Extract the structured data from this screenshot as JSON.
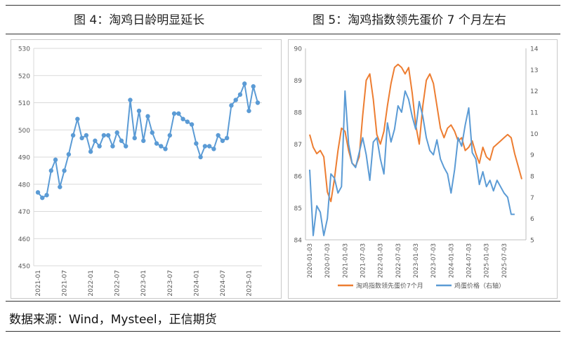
{
  "page": {
    "left_title": "图 4：淘鸡日龄明显延长",
    "right_title": "图 5：淘鸡指数领先蛋价 7 个月左右",
    "source": "数据来源：Wind，Mysteel，正信期货"
  },
  "chart_data": [
    {
      "type": "line",
      "title": "",
      "ylim": [
        450,
        530
      ],
      "yticks": [
        450,
        460,
        470,
        480,
        490,
        500,
        510,
        520,
        530
      ],
      "grid": true,
      "xtick_labels": [
        "2021-01",
        "2021-07",
        "2022-01",
        "2022-07",
        "2023-01",
        "2023-07",
        "2024-01",
        "2024-07",
        "2025-01"
      ],
      "series": [
        {
          "color": "#5b9bd5",
          "values": [
            477,
            475,
            476,
            485,
            489,
            479,
            485,
            491,
            498,
            504,
            497,
            498,
            492,
            496,
            494,
            498,
            498,
            494,
            499,
            496,
            494,
            511,
            497,
            507,
            496,
            505,
            499,
            495,
            494,
            493,
            498,
            506,
            506,
            504,
            503,
            502,
            495,
            490,
            494,
            494,
            493,
            498,
            496,
            497,
            509,
            511,
            513,
            517,
            507,
            516,
            510
          ]
        }
      ]
    },
    {
      "type": "line",
      "title": "",
      "ylim_left": [
        84,
        90
      ],
      "ylim_right": [
        5,
        14
      ],
      "yticks_left": [
        84,
        85,
        86,
        87,
        88,
        89,
        90
      ],
      "yticks_right": [
        5,
        6,
        7,
        8,
        9,
        10,
        11,
        12,
        13,
        14
      ],
      "grid": false,
      "legend_position": "bottom",
      "xtick_labels": [
        "2020-01-03",
        "2020-07-03",
        "2021-01-03",
        "2021-07-03",
        "2022-01-03",
        "2022-07-03",
        "2023-01-03",
        "2023-07-03",
        "2024-01-03",
        "2024-07-03",
        "2025-01-03",
        "2025-07-03"
      ],
      "series": [
        {
          "name": "淘鸡指数领先蛋价7个月",
          "color": "#ed7d31",
          "axis": "left",
          "x": [
            0.0,
            0.2,
            0.4,
            0.6,
            0.8,
            1.0,
            1.2,
            1.4,
            1.6,
            1.8,
            2.0,
            2.2,
            2.4,
            2.6,
            2.8,
            3.0,
            3.2,
            3.4,
            3.6,
            3.8,
            4.0,
            4.2,
            4.4,
            4.6,
            4.8,
            5.0,
            5.2,
            5.4,
            5.6,
            5.8,
            6.0,
            6.2,
            6.4,
            6.6,
            6.8,
            7.0,
            7.2,
            7.4,
            7.6,
            7.8,
            8.0,
            8.2,
            8.4,
            8.6,
            8.8,
            9.0,
            9.2,
            9.4,
            9.6,
            9.8,
            10.0,
            10.2,
            10.4,
            10.6,
            10.8,
            11.0,
            11.2,
            11.4,
            11.6,
            11.8,
            12.0
          ],
          "values": [
            87.3,
            86.9,
            86.7,
            86.8,
            86.6,
            85.5,
            85.2,
            85.9,
            86.8,
            87.5,
            87.4,
            86.8,
            86.4,
            86.3,
            86.6,
            87.9,
            89.0,
            89.2,
            88.4,
            87.3,
            87.0,
            87.4,
            88.2,
            88.9,
            89.4,
            89.5,
            89.4,
            89.2,
            89.4,
            88.6,
            87.6,
            87.0,
            88.2,
            89.0,
            89.2,
            88.9,
            88.2,
            87.5,
            87.2,
            87.5,
            87.6,
            87.4,
            87.1,
            87.2,
            86.8,
            86.9,
            87.1,
            86.7,
            86.4,
            86.9,
            86.6,
            86.5,
            86.9,
            87.0,
            87.1,
            87.2,
            87.3,
            87.2,
            86.7,
            86.3,
            85.9
          ]
        },
        {
          "name": "鸡蛋价格（右轴）",
          "color": "#5b9bd5",
          "axis": "right",
          "x": [
            0.0,
            0.2,
            0.4,
            0.6,
            0.8,
            1.0,
            1.2,
            1.4,
            1.6,
            1.8,
            2.0,
            2.2,
            2.4,
            2.6,
            2.8,
            3.0,
            3.2,
            3.4,
            3.6,
            3.8,
            4.0,
            4.2,
            4.4,
            4.6,
            4.8,
            5.0,
            5.2,
            5.4,
            5.6,
            5.8,
            6.0,
            6.2,
            6.4,
            6.6,
            6.8,
            7.0,
            7.2,
            7.4,
            7.6,
            7.8,
            8.0,
            8.2,
            8.4,
            8.6,
            8.8,
            9.0,
            9.2,
            9.4,
            9.6,
            9.8,
            10.0,
            10.2,
            10.4,
            10.6,
            10.8,
            11.0,
            11.2,
            11.4,
            11.6
          ],
          "values": [
            8.3,
            5.2,
            6.6,
            6.3,
            5.2,
            6.0,
            8.1,
            7.9,
            7.2,
            7.5,
            12.0,
            9.5,
            8.6,
            8.4,
            9.1,
            9.8,
            9.0,
            7.8,
            9.6,
            9.8,
            8.8,
            8.1,
            10.5,
            9.6,
            10.2,
            11.3,
            11.0,
            12.0,
            11.6,
            10.8,
            10.2,
            11.5,
            10.8,
            9.8,
            9.2,
            9.0,
            9.7,
            8.8,
            8.4,
            8.1,
            7.2,
            8.3,
            9.8,
            9.4,
            10.4,
            11.2,
            9.1,
            8.8,
            7.6,
            8.2,
            7.5,
            7.8,
            7.3,
            7.8,
            7.5,
            7.2,
            7.0,
            6.2,
            6.2
          ]
        }
      ]
    }
  ]
}
